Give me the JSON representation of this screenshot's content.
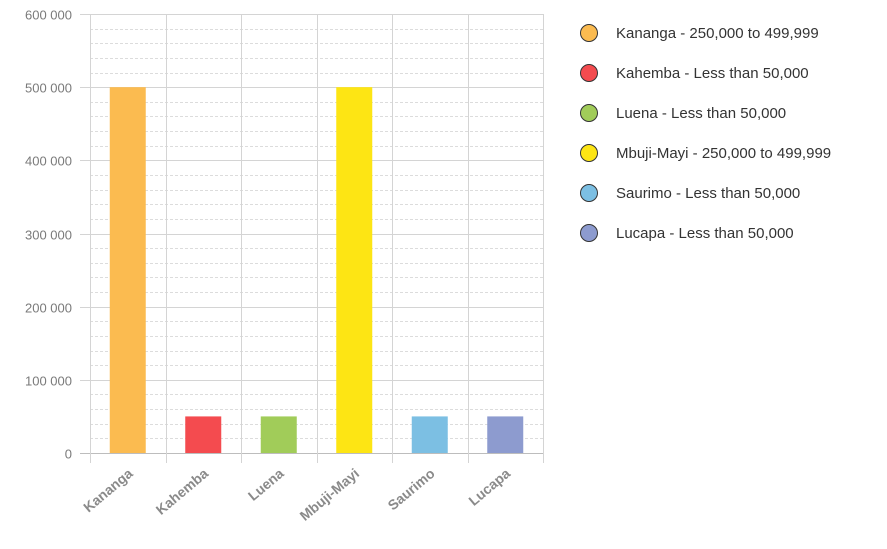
{
  "chart_data": {
    "type": "bar",
    "title": "",
    "xlabel": "",
    "ylabel": "",
    "ylim": [
      0,
      600000
    ],
    "y_ticks": [
      {
        "value": 0,
        "label": "0"
      },
      {
        "value": 100000,
        "label": "100 000"
      },
      {
        "value": 200000,
        "label": "200 000"
      },
      {
        "value": 300000,
        "label": "300 000"
      },
      {
        "value": 400000,
        "label": "400 000"
      },
      {
        "value": 500000,
        "label": "500 000"
      },
      {
        "value": 600000,
        "label": "600 000"
      }
    ],
    "minor_grid_step": 20000,
    "grid": true,
    "legend_position": "right",
    "categories": [
      "Kananga",
      "Kahemba",
      "Luena",
      "Mbuji-Mayi",
      "Saurimo",
      "Lucapa"
    ],
    "values": [
      499999,
      50000,
      50000,
      499999,
      50000,
      50000
    ],
    "colors": [
      "#fbbb50",
      "#f44b4f",
      "#a1cc59",
      "#fde514",
      "#7cbfe3",
      "#8d9bcf"
    ]
  },
  "legend": {
    "items": [
      {
        "label": "Kananga - 250,000 to 499,999",
        "color": "#fbbb50"
      },
      {
        "label": "Kahemba - Less than 50,000",
        "color": "#f44b4f"
      },
      {
        "label": "Luena - Less than 50,000",
        "color": "#a1cc59"
      },
      {
        "label": "Mbuji-Mayi - 250,000 to 499,999",
        "color": "#fde514"
      },
      {
        "label": "Saurimo - Less than 50,000",
        "color": "#7cbfe3"
      },
      {
        "label": "Lucapa - Less than 50,000",
        "color": "#8d9bcf"
      }
    ]
  }
}
